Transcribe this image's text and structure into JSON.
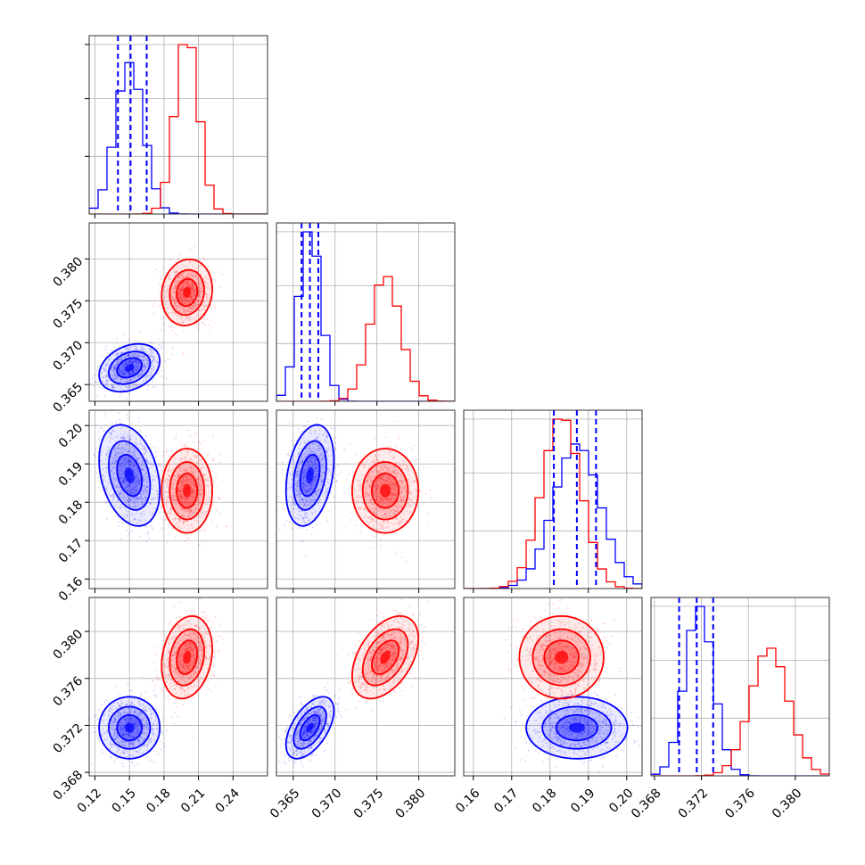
{
  "colors": {
    "series_blue": "#0000ff",
    "series_red": "#ff0000",
    "grid": "#b0b0b0",
    "frame": "#333333"
  },
  "chart_data": {
    "type": "corner",
    "grid": true,
    "parameters": [
      {
        "ticks": [
          0.12,
          0.15,
          0.18,
          0.21,
          0.24
        ],
        "tick_labels": [
          "0.12",
          "0.15",
          "0.18",
          "0.21",
          "0.24"
        ],
        "range": [
          0.115,
          0.27
        ]
      },
      {
        "ticks": [
          0.365,
          0.37,
          0.375,
          0.38
        ],
        "tick_labels": [
          "0.365",
          "0.370",
          "0.375",
          "0.380"
        ],
        "range": [
          0.363,
          0.3843
        ]
      },
      {
        "ticks": [
          0.16,
          0.17,
          0.18,
          0.19,
          0.2
        ],
        "tick_labels": [
          "0.16",
          "0.17",
          "0.18",
          "0.19",
          "0.20"
        ],
        "range": [
          0.1575,
          0.204
        ]
      },
      {
        "ticks": [
          0.368,
          0.372,
          0.376,
          0.38
        ],
        "tick_labels": [
          "0.368",
          "0.372",
          "0.376",
          "0.380"
        ],
        "range": [
          0.3677,
          0.3829
        ]
      }
    ],
    "series": [
      {
        "color": "#0000ff",
        "means": [
          0.15,
          0.367,
          0.187,
          0.3718
        ],
        "sds": [
          0.012,
          0.0013,
          0.006,
          0.0012
        ],
        "corr": [
          [
            1,
            0.3,
            -0.3,
            0.0
          ],
          [
            0.3,
            1,
            0.3,
            0.55
          ],
          [
            -0.3,
            0.3,
            1,
            0.0
          ],
          [
            0.0,
            0.55,
            0.0,
            1
          ]
        ],
        "quantiles": [
          [
            0.14,
            0.151,
            0.165
          ],
          [
            0.366,
            0.367,
            0.368
          ],
          [
            0.181,
            0.187,
            0.192
          ],
          [
            0.3701,
            0.3716,
            0.373
          ]
        ]
      },
      {
        "color": "#ff0000",
        "means": [
          0.2,
          0.376,
          0.183,
          0.3778
        ],
        "sds": [
          0.01,
          0.0018,
          0.005,
          0.0016
        ],
        "corr": [
          [
            1,
            0.1,
            0.0,
            0.2
          ],
          [
            0.1,
            1,
            0.0,
            0.45
          ],
          [
            0.0,
            0.0,
            1,
            0.0
          ],
          [
            0.2,
            0.45,
            0.0,
            1
          ]
        ]
      }
    ]
  }
}
